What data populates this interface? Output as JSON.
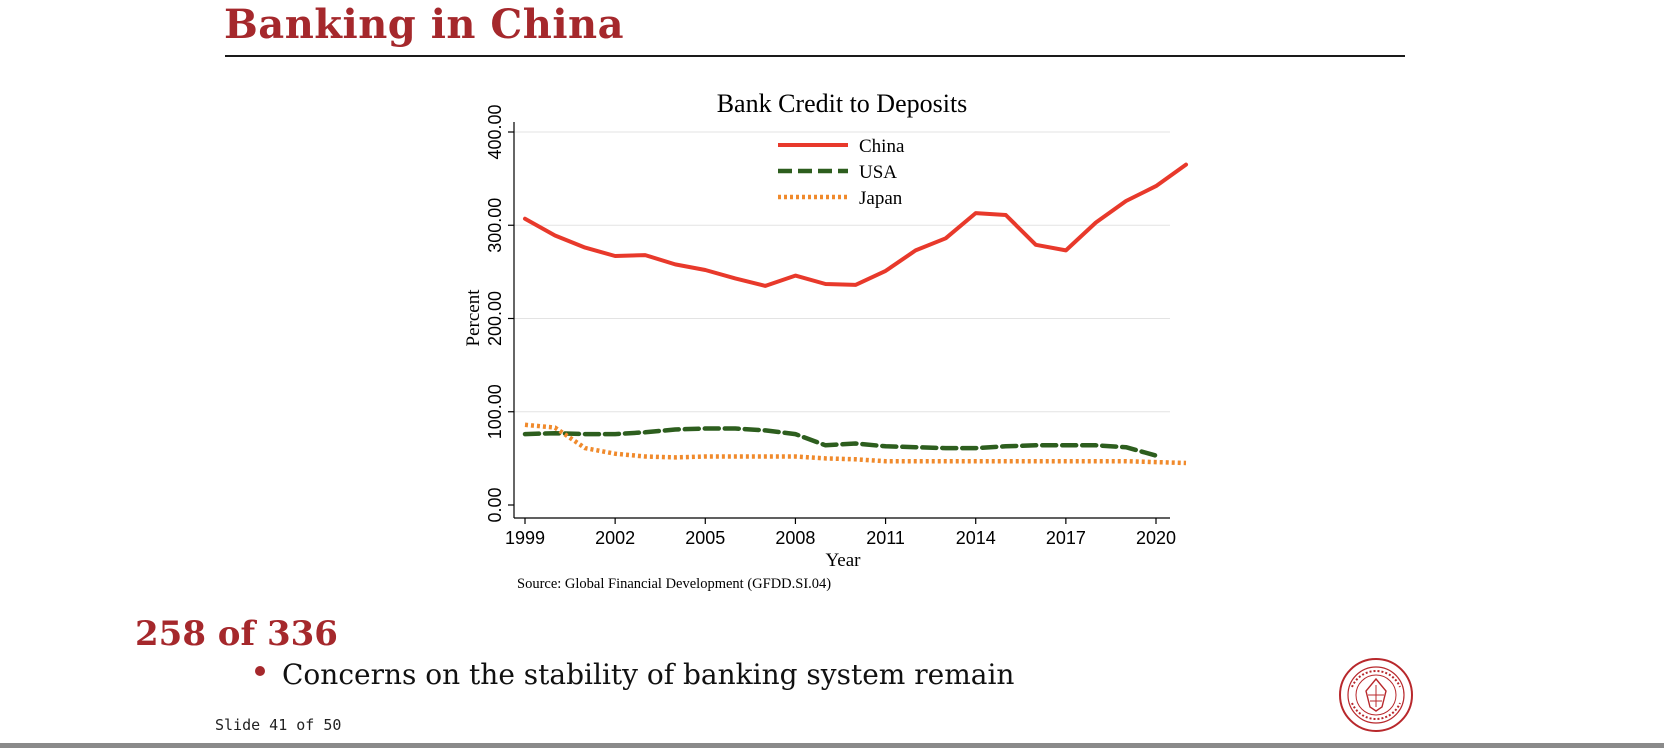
{
  "slide": {
    "title": "Banking in China",
    "counter": "258 of 336",
    "bullet": "Concerns on the stability of banking system remain",
    "footer": "Slide 41 of 50",
    "accent_color": "#a5282c"
  },
  "chart_data": {
    "type": "line",
    "title": "Bank Credit to Deposits",
    "xlabel": "Year",
    "ylabel": "Percent",
    "source": "Source: Global Financial Development (GFDD.SI.04)",
    "xlim": [
      1999,
      2021
    ],
    "ylim": [
      0,
      400
    ],
    "x_ticks": [
      1999,
      2002,
      2005,
      2008,
      2011,
      2014,
      2017,
      2020
    ],
    "y_ticks": [
      "0.00",
      "100.00",
      "200.00",
      "300.00",
      "400.00"
    ],
    "grid": true,
    "legend": "top-center",
    "series": [
      {
        "name": "China",
        "color": "#e8392b",
        "style": "solid",
        "x": [
          1999,
          2000,
          2001,
          2002,
          2003,
          2004,
          2005,
          2006,
          2007,
          2008,
          2009,
          2010,
          2011,
          2012,
          2013,
          2014,
          2015,
          2016,
          2017,
          2018,
          2019,
          2020,
          2021
        ],
        "values": [
          307,
          289,
          276,
          267,
          268,
          258,
          252,
          243,
          235,
          246,
          237,
          236,
          251,
          273,
          286,
          313,
          311,
          279,
          273,
          303,
          326,
          342,
          365
        ]
      },
      {
        "name": "USA",
        "color": "#2d5e1e",
        "style": "dashed",
        "x": [
          1999,
          2000,
          2001,
          2002,
          2003,
          2004,
          2005,
          2006,
          2007,
          2008,
          2009,
          2010,
          2011,
          2012,
          2013,
          2014,
          2015,
          2016,
          2017,
          2018,
          2019,
          2020
        ],
        "values": [
          76,
          77,
          76,
          76,
          78,
          81,
          82,
          82,
          80,
          76,
          64,
          66,
          63,
          62,
          61,
          61,
          63,
          64,
          64,
          64,
          62,
          53
        ]
      },
      {
        "name": "Japan",
        "color": "#f08a2c",
        "style": "dotted",
        "x": [
          1999,
          2000,
          2001,
          2002,
          2003,
          2004,
          2005,
          2006,
          2007,
          2008,
          2009,
          2010,
          2011,
          2012,
          2013,
          2014,
          2015,
          2016,
          2017,
          2018,
          2019,
          2020,
          2021
        ],
        "values": [
          86,
          83,
          61,
          55,
          52,
          51,
          52,
          52,
          52,
          52,
          50,
          49,
          47,
          47,
          47,
          47,
          47,
          47,
          47,
          47,
          47,
          46,
          45
        ]
      }
    ]
  }
}
